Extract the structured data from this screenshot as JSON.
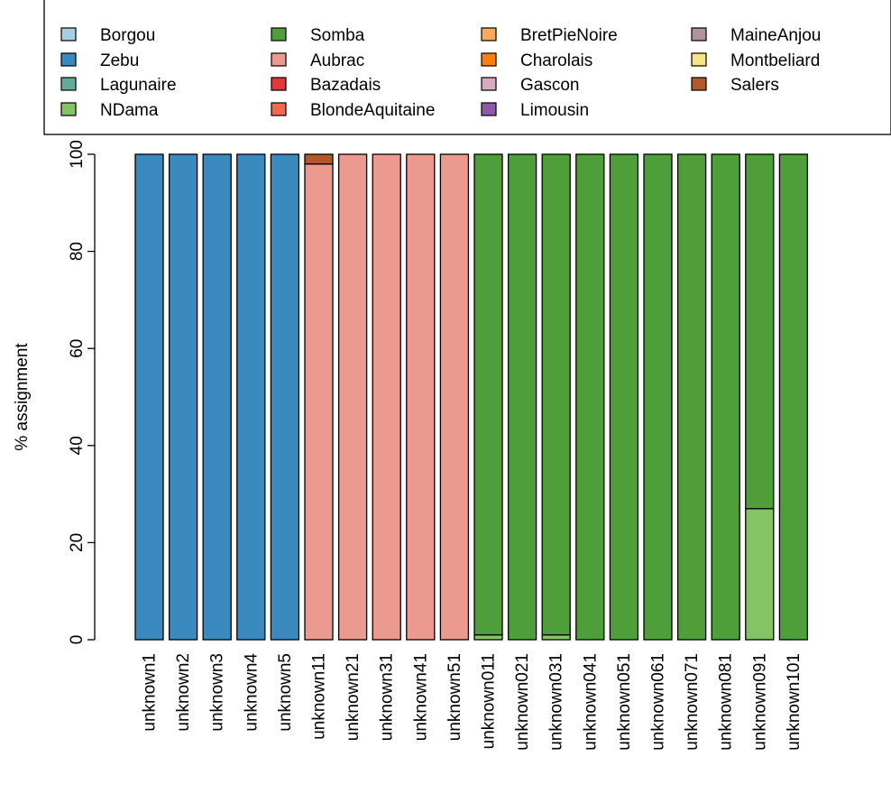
{
  "chart_data": {
    "type": "bar",
    "stacked": true,
    "title": "",
    "xlabel": "",
    "ylabel": "% assignment",
    "ylim": [
      0,
      100
    ],
    "yticks": [
      0,
      20,
      40,
      60,
      80,
      100
    ],
    "grid": false,
    "legend_position": "top",
    "categories": [
      "unknown1",
      "unknown2",
      "unknown3",
      "unknown4",
      "unknown5",
      "unknown11",
      "unknown21",
      "unknown31",
      "unknown41",
      "unknown51",
      "unknown011",
      "unknown021",
      "unknown031",
      "unknown041",
      "unknown051",
      "unknown061",
      "unknown071",
      "unknown081",
      "unknown091",
      "unknown101"
    ],
    "series": [
      {
        "name": "Borgou",
        "color": "#A6CEE3",
        "values": [
          0,
          0,
          0,
          0,
          0,
          0,
          0,
          0,
          0,
          0,
          0,
          0,
          0,
          0,
          0,
          0,
          0,
          0,
          0,
          0
        ]
      },
      {
        "name": "Zebu",
        "color": "#3A89BF",
        "values": [
          100,
          100,
          100,
          100,
          100,
          0,
          0,
          0,
          0,
          0,
          0,
          0,
          0,
          0,
          0,
          0,
          0,
          0,
          0,
          0
        ]
      },
      {
        "name": "Lagunaire",
        "color": "#66AA9A",
        "values": [
          0,
          0,
          0,
          0,
          0,
          0,
          0,
          0,
          0,
          0,
          0,
          0,
          0,
          0,
          0,
          0,
          0,
          0,
          0,
          0
        ]
      },
      {
        "name": "NDama",
        "color": "#84C464",
        "values": [
          0,
          0,
          0,
          0,
          0,
          0,
          0,
          0,
          0,
          0,
          1,
          0,
          1,
          0,
          0,
          0,
          0,
          0,
          27,
          0
        ]
      },
      {
        "name": "Somba",
        "color": "#4E9E3A",
        "values": [
          0,
          0,
          0,
          0,
          0,
          0,
          0,
          0,
          0,
          0,
          99,
          100,
          99,
          100,
          100,
          100,
          100,
          100,
          73,
          100
        ]
      },
      {
        "name": "Aubrac",
        "color": "#EC9A90",
        "values": [
          0,
          0,
          0,
          0,
          0,
          98,
          100,
          100,
          100,
          100,
          0,
          0,
          0,
          0,
          0,
          0,
          0,
          0,
          0,
          0
        ]
      },
      {
        "name": "Bazadais",
        "color": "#E2383B",
        "values": [
          0,
          0,
          0,
          0,
          0,
          0,
          0,
          0,
          0,
          0,
          0,
          0,
          0,
          0,
          0,
          0,
          0,
          0,
          0,
          0
        ]
      },
      {
        "name": "BlondeAquitaine",
        "color": "#F3694A",
        "values": [
          0,
          0,
          0,
          0,
          0,
          0,
          0,
          0,
          0,
          0,
          0,
          0,
          0,
          0,
          0,
          0,
          0,
          0,
          0,
          0
        ]
      },
      {
        "name": "BretPieNoire",
        "color": "#FBA95B",
        "values": [
          0,
          0,
          0,
          0,
          0,
          0,
          0,
          0,
          0,
          0,
          0,
          0,
          0,
          0,
          0,
          0,
          0,
          0,
          0,
          0
        ]
      },
      {
        "name": "Charolais",
        "color": "#FA7F12",
        "values": [
          0,
          0,
          0,
          0,
          0,
          0,
          0,
          0,
          0,
          0,
          0,
          0,
          0,
          0,
          0,
          0,
          0,
          0,
          0,
          0
        ]
      },
      {
        "name": "Gascon",
        "color": "#D7AABF",
        "values": [
          0,
          0,
          0,
          0,
          0,
          0,
          0,
          0,
          0,
          0,
          0,
          0,
          0,
          0,
          0,
          0,
          0,
          0,
          0,
          0
        ]
      },
      {
        "name": "Limousin",
        "color": "#8E59A8",
        "values": [
          0,
          0,
          0,
          0,
          0,
          0,
          0,
          0,
          0,
          0,
          0,
          0,
          0,
          0,
          0,
          0,
          0,
          0,
          0,
          0
        ]
      },
      {
        "name": "MaineAnjou",
        "color": "#AF9499",
        "values": [
          0,
          0,
          0,
          0,
          0,
          0,
          0,
          0,
          0,
          0,
          0,
          0,
          0,
          0,
          0,
          0,
          0,
          0,
          0,
          0
        ]
      },
      {
        "name": "Montbeliard",
        "color": "#F6E384",
        "values": [
          0,
          0,
          0,
          0,
          0,
          0,
          0,
          0,
          0,
          0,
          0,
          0,
          0,
          0,
          0,
          0,
          0,
          0,
          0,
          0
        ]
      },
      {
        "name": "Salers",
        "color": "#B15928",
        "values": [
          0,
          0,
          0,
          0,
          0,
          2,
          0,
          0,
          0,
          0,
          0,
          0,
          0,
          0,
          0,
          0,
          0,
          0,
          0,
          0
        ]
      }
    ]
  }
}
